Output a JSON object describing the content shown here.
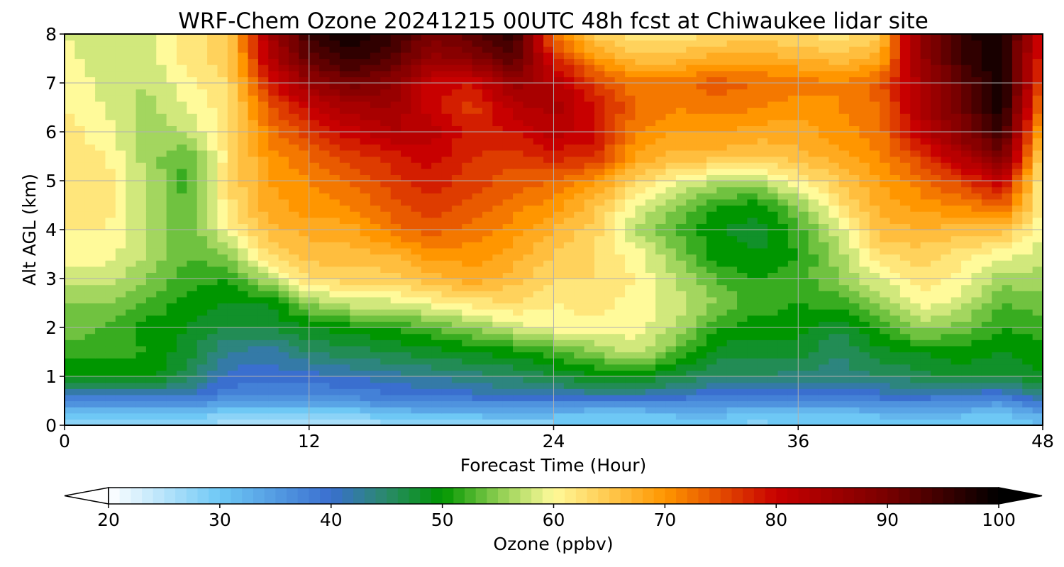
{
  "chart_data": {
    "type": "heatmap",
    "title": "WRF-Chem Ozone  20241215 00UTC 48h fcst at Chiwaukee lidar site",
    "xlabel": "Forecast Time (Hour)",
    "ylabel": "Alt AGL (km)",
    "xlim": [
      0,
      48
    ],
    "ylim": [
      0,
      8
    ],
    "x_ticks": [
      "0",
      "12",
      "24",
      "36",
      "48"
    ],
    "y_ticks": [
      "0",
      "1",
      "2",
      "3",
      "4",
      "5",
      "6",
      "7",
      "8"
    ],
    "grid": true,
    "colorbar": {
      "label": "Ozone  (ppbv)",
      "range": [
        20,
        100
      ],
      "ticks": [
        "20",
        "30",
        "40",
        "50",
        "60",
        "70",
        "80",
        "90",
        "100"
      ],
      "extend": "both",
      "stops": [
        {
          "value": 20,
          "color": "#ffffff"
        },
        {
          "value": 30,
          "color": "#6ec8f5"
        },
        {
          "value": 40,
          "color": "#3a6fcf"
        },
        {
          "value": 45,
          "color": "#2a8a6a"
        },
        {
          "value": 50,
          "color": "#009600"
        },
        {
          "value": 55,
          "color": "#8ccd50"
        },
        {
          "value": 60,
          "color": "#fffa9a"
        },
        {
          "value": 70,
          "color": "#ff9600"
        },
        {
          "value": 80,
          "color": "#c80000"
        },
        {
          "value": 90,
          "color": "#780000"
        },
        {
          "value": 100,
          "color": "#000000"
        }
      ],
      "under_color": "#ffffff",
      "over_color": "#000000"
    },
    "x_hours": [
      0,
      2,
      4,
      6,
      8,
      10,
      12,
      14,
      16,
      18,
      20,
      22,
      24,
      26,
      28,
      30,
      32,
      34,
      36,
      38,
      40,
      42,
      44,
      46,
      48
    ],
    "z_km": [
      0,
      0.25,
      0.5,
      0.75,
      1,
      1.5,
      2,
      2.5,
      3,
      3.5,
      4,
      4.5,
      5,
      5.5,
      6,
      6.5,
      7,
      7.5,
      8
    ],
    "ozone_ppbv": [
      [
        26,
        26,
        27,
        28,
        25,
        24,
        25,
        25,
        26,
        26,
        27,
        27,
        28,
        29,
        29,
        28,
        29,
        28,
        29,
        29,
        28,
        28,
        28,
        29,
        31
      ],
      [
        31,
        31,
        31,
        31,
        29,
        28,
        28,
        29,
        31,
        32,
        32,
        33,
        32,
        31,
        31,
        32,
        32,
        31,
        31,
        31,
        32,
        32,
        32,
        31,
        34
      ],
      [
        37,
        37,
        37,
        37,
        36,
        35,
        35,
        36,
        37,
        38,
        38,
        38,
        38,
        38,
        38,
        38,
        37,
        37,
        37,
        37,
        38,
        38,
        37,
        36,
        40
      ],
      [
        44,
        44,
        45,
        43,
        39,
        38,
        38,
        39,
        40,
        41,
        42,
        43,
        44,
        45,
        45,
        44,
        41,
        41,
        41,
        41,
        42,
        43,
        43,
        42,
        46
      ],
      [
        49,
        49,
        50,
        46,
        40,
        40,
        40,
        41,
        42,
        43,
        44,
        45,
        47,
        49,
        49,
        47,
        45,
        45,
        44,
        44,
        45,
        46,
        48,
        47,
        49
      ],
      [
        52,
        52,
        51,
        48,
        43,
        42,
        45,
        46,
        47,
        48,
        49,
        50,
        52,
        55,
        58,
        53,
        48,
        48,
        48,
        45,
        48,
        49,
        50,
        49,
        50
      ],
      [
        54,
        53,
        50,
        49,
        47,
        47,
        49,
        50,
        51,
        53,
        55,
        58,
        60,
        60,
        60,
        57,
        51,
        50,
        50,
        47,
        52,
        56,
        54,
        51,
        52
      ],
      [
        55,
        55,
        53,
        50,
        49,
        49,
        55,
        58,
        58,
        60,
        62,
        63,
        61,
        62,
        60,
        58,
        55,
        52,
        51,
        52,
        55,
        60,
        58,
        53,
        54
      ],
      [
        58,
        58,
        55,
        52,
        51,
        57,
        63,
        64,
        64,
        66,
        68,
        66,
        63,
        63,
        61,
        57,
        53,
        51,
        52,
        55,
        59,
        62,
        60,
        56,
        56
      ],
      [
        60,
        60,
        57,
        53,
        55,
        63,
        66,
        66,
        67,
        70,
        70,
        68,
        65,
        63,
        60,
        55,
        50,
        49,
        51,
        56,
        63,
        64,
        62,
        60,
        58
      ],
      [
        61,
        61,
        57,
        53,
        60,
        66,
        68,
        68,
        72,
        74,
        72,
        70,
        67,
        64,
        57,
        53,
        49,
        48,
        52,
        58,
        66,
        67,
        66,
        66,
        59
      ],
      [
        62,
        62,
        57,
        53,
        62,
        68,
        70,
        71,
        74,
        76,
        74,
        72,
        70,
        66,
        59,
        55,
        51,
        50,
        55,
        62,
        68,
        70,
        71,
        74,
        61
      ],
      [
        63,
        62,
        57,
        52,
        63,
        69,
        71,
        73,
        76,
        78,
        76,
        74,
        73,
        70,
        64,
        60,
        57,
        57,
        61,
        65,
        69,
        72,
        76,
        81,
        60
      ],
      [
        62,
        61,
        56,
        53,
        62,
        70,
        73,
        76,
        78,
        80,
        77,
        76,
        78,
        77,
        69,
        66,
        66,
        65,
        66,
        68,
        71,
        76,
        83,
        90,
        63
      ],
      [
        62,
        60,
        56,
        57,
        62,
        72,
        76,
        80,
        83,
        82,
        78,
        79,
        82,
        80,
        71,
        69,
        69,
        68,
        68,
        70,
        72,
        81,
        88,
        96,
        66
      ],
      [
        61,
        59,
        56,
        59,
        62,
        74,
        80,
        84,
        85,
        80,
        76,
        82,
        84,
        79,
        73,
        71,
        72,
        71,
        70,
        71,
        73,
        83,
        91,
        99,
        70
      ],
      [
        61,
        58,
        57,
        60,
        63,
        78,
        86,
        90,
        88,
        80,
        79,
        86,
        83,
        76,
        72,
        72,
        74,
        73,
        72,
        71,
        74,
        84,
        92,
        99,
        74
      ],
      [
        60,
        57,
        58,
        62,
        64,
        82,
        92,
        96,
        93,
        86,
        88,
        93,
        78,
        70,
        66,
        66,
        68,
        68,
        67,
        66,
        68,
        86,
        95,
        99,
        76
      ],
      [
        59,
        57,
        58,
        62,
        64,
        84,
        95,
        99,
        96,
        90,
        92,
        97,
        72,
        64,
        62,
        62,
        63,
        64,
        63,
        62,
        64,
        88,
        96,
        99,
        78
      ]
    ]
  }
}
